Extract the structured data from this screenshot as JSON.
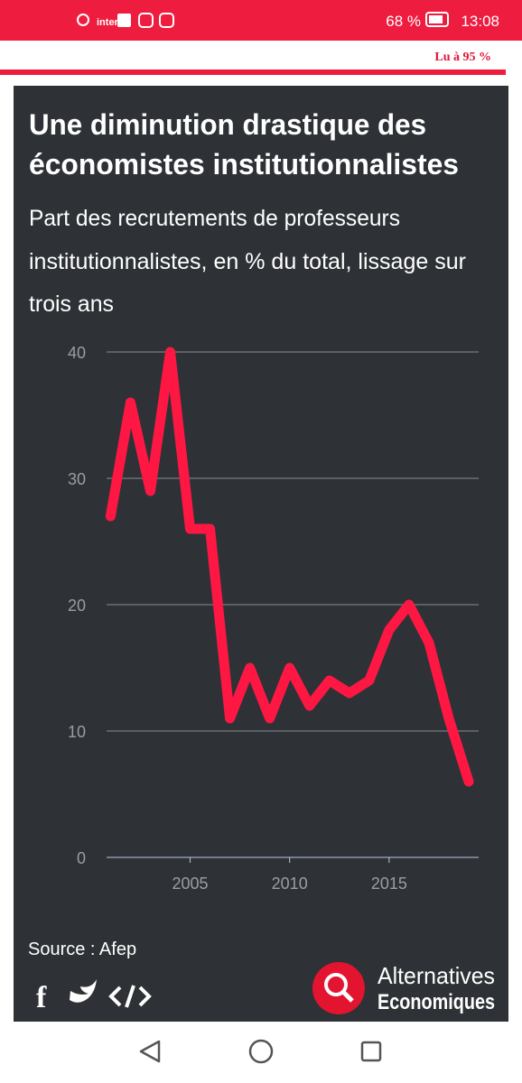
{
  "status_bar": {
    "carrier": "inter",
    "battery": "68 %",
    "time": "13:08"
  },
  "reading_progress": "Lu à 95 %",
  "chart_data": {
    "type": "line",
    "title": [
      "Une diminution drastique des",
      "économistes institutionnalistes"
    ],
    "subtitle": [
      "Part des recrutements de professeurs",
      "institutionnalistes, en % du total, lissage sur",
      "trois ans"
    ],
    "x": [
      2001,
      2002,
      2003,
      2004,
      2005,
      2006,
      2007,
      2008,
      2009,
      2010,
      2011,
      2012,
      2013,
      2014,
      2015,
      2016,
      2017,
      2018,
      2019
    ],
    "series": [
      {
        "color": "#ff1744",
        "values": [
          27,
          36,
          29,
          40,
          26,
          26,
          11,
          15,
          11,
          15,
          12,
          14,
          13,
          14,
          18,
          20,
          17,
          11,
          6
        ]
      }
    ],
    "xlim": [
      2000.8,
      2019.5
    ],
    "xticks": [
      2005,
      2010,
      2015
    ],
    "ylim": [
      0,
      40
    ],
    "yticks": [
      0,
      10,
      20,
      30,
      40
    ],
    "grid": true,
    "source": "Source : Afep"
  },
  "brand": [
    "Alternatives",
    "Economiques"
  ]
}
